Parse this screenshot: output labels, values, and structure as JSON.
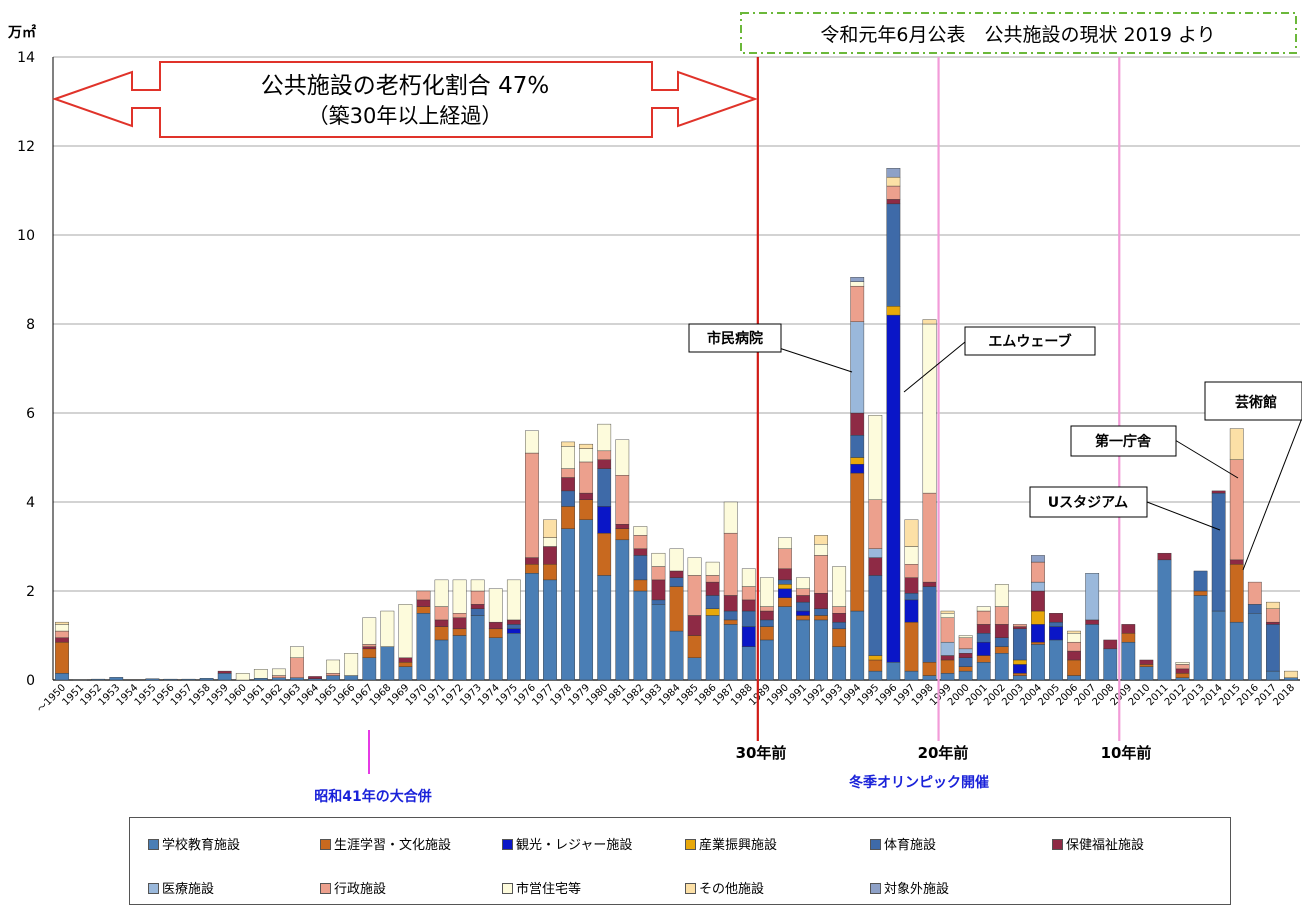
{
  "chart_data": {
    "type": "bar",
    "stacked": true,
    "ylabel": "万㎡",
    "ylim": [
      0,
      14
    ],
    "yticks": [
      0,
      2,
      4,
      6,
      8,
      10,
      12,
      14
    ],
    "grid": true,
    "source_note": "令和元年6月公表　公共施設の現状 2019 より",
    "categories": [
      "～1950",
      "1951",
      "1952",
      "1953",
      "1954",
      "1955",
      "1956",
      "1957",
      "1958",
      "1959",
      "1960",
      "1961",
      "1962",
      "1963",
      "1964",
      "1965",
      "1966",
      "1967",
      "1968",
      "1969",
      "1970",
      "1971",
      "1972",
      "1973",
      "1974",
      "1975",
      "1976",
      "1977",
      "1978",
      "1979",
      "1980",
      "1981",
      "1982",
      "1983",
      "1984",
      "1985",
      "1986",
      "1987",
      "1988",
      "1989",
      "1990",
      "1991",
      "1992",
      "1993",
      "1994",
      "1995",
      "1996",
      "1997",
      "1998",
      "1999",
      "2000",
      "2001",
      "2002",
      "2003",
      "2004",
      "2005",
      "2006",
      "2007",
      "2008",
      "2009",
      "2010",
      "2011",
      "2012",
      "2013",
      "2014",
      "2015",
      "2016",
      "2017",
      "2018"
    ],
    "series": [
      {
        "name": "学校教育施設",
        "color": "#4a7eb5",
        "values": [
          0.15,
          0.01,
          0.02,
          0.06,
          0,
          0.03,
          0.02,
          0.02,
          0.04,
          0.15,
          0,
          0.04,
          0.05,
          0.05,
          0.03,
          0.1,
          0.1,
          0.5,
          0.75,
          0.3,
          1.5,
          0.9,
          1.0,
          1.45,
          0.95,
          1.05,
          2.4,
          2.25,
          3.4,
          3.6,
          2.35,
          3.15,
          2.0,
          1.7,
          1.1,
          0.5,
          1.45,
          1.25,
          0.75,
          0.9,
          1.65,
          1.35,
          1.35,
          0.75,
          1.55,
          0.2,
          0.4,
          0.2,
          0.1,
          0.15,
          0.2,
          0.4,
          0.6,
          0.1,
          0.8,
          0.9,
          0.1,
          1.25,
          0.7,
          0.85,
          0.3,
          2.7,
          0.05,
          1.9,
          1.55,
          1.3,
          1.5,
          0.2,
          0.05
        ]
      },
      {
        "name": "生涯学習・文化施設",
        "color": "#c8691f",
        "values": [
          0.7,
          0,
          0,
          0,
          0,
          0,
          0,
          0,
          0,
          0,
          0,
          0,
          0,
          0,
          0,
          0,
          0,
          0.2,
          0,
          0.1,
          0.15,
          0.3,
          0.15,
          0,
          0.2,
          0,
          0.2,
          0.35,
          0.5,
          0.45,
          0.95,
          0.25,
          0.25,
          0,
          1.0,
          0.5,
          0,
          0.1,
          0,
          0.3,
          0.2,
          0.1,
          0.1,
          0.4,
          3.1,
          0.25,
          0,
          1.1,
          0.3,
          0.3,
          0.1,
          0.15,
          0.15,
          0.05,
          0.05,
          0,
          0.35,
          0,
          0,
          0.2,
          0.05,
          0,
          0.1,
          0.1,
          0,
          1.3,
          0,
          0,
          0
        ]
      },
      {
        "name": "観光・レジャー施設",
        "color": "#0a16c7",
        "values": [
          0,
          0,
          0,
          0,
          0,
          0,
          0,
          0,
          0,
          0,
          0,
          0,
          0,
          0,
          0,
          0,
          0,
          0,
          0,
          0,
          0,
          0,
          0,
          0,
          0,
          0.1,
          0,
          0,
          0,
          0,
          0.6,
          0,
          0,
          0,
          0,
          0,
          0,
          0,
          0.45,
          0,
          0.2,
          0.1,
          0,
          0,
          0.2,
          0,
          7.8,
          0.5,
          0,
          0,
          0,
          0.3,
          0,
          0.2,
          0.4,
          0.3,
          0,
          0,
          0,
          0,
          0,
          0,
          0,
          0,
          0,
          0,
          0,
          0,
          0
        ]
      },
      {
        "name": "産業振興施設",
        "color": "#e8a80a",
        "values": [
          0,
          0,
          0,
          0,
          0,
          0,
          0,
          0,
          0,
          0,
          0,
          0,
          0,
          0,
          0,
          0,
          0,
          0,
          0,
          0,
          0,
          0,
          0,
          0,
          0,
          0,
          0,
          0,
          0,
          0,
          0,
          0,
          0,
          0,
          0,
          0,
          0.15,
          0,
          0,
          0,
          0.1,
          0,
          0,
          0,
          0.15,
          0.1,
          0.2,
          0,
          0,
          0,
          0,
          0,
          0,
          0.1,
          0.3,
          0,
          0,
          0,
          0,
          0,
          0,
          0,
          0,
          0,
          0,
          0,
          0,
          0,
          0
        ]
      },
      {
        "name": "体育施設",
        "color": "#3e6aa8",
        "values": [
          0,
          0,
          0,
          0,
          0,
          0,
          0,
          0,
          0,
          0,
          0,
          0,
          0,
          0,
          0,
          0,
          0,
          0,
          0,
          0,
          0,
          0,
          0,
          0.15,
          0,
          0.1,
          0,
          0,
          0.35,
          0,
          0.85,
          0,
          0.55,
          0.1,
          0.2,
          0,
          0.3,
          0.2,
          0.35,
          0.15,
          0.1,
          0.2,
          0.15,
          0.15,
          0.5,
          1.8,
          2.3,
          0.15,
          1.7,
          0,
          0.2,
          0.2,
          0.2,
          0.7,
          0,
          0.1,
          0,
          0,
          0,
          0,
          0,
          0,
          0,
          0.45,
          2.65,
          0,
          0.2,
          1.05,
          0
        ]
      },
      {
        "name": "保健福祉施設",
        "color": "#8e2a45",
        "values": [
          0.1,
          0,
          0,
          0,
          0,
          0,
          0,
          0,
          0,
          0.05,
          0,
          0,
          0,
          0,
          0.05,
          0,
          0,
          0.05,
          0,
          0.1,
          0.15,
          0.15,
          0.25,
          0.1,
          0.15,
          0.1,
          0.15,
          0.4,
          0.3,
          0.15,
          0.2,
          0.1,
          0.15,
          0.45,
          0.15,
          0.45,
          0.3,
          0.35,
          0.25,
          0.2,
          0.25,
          0.15,
          0.35,
          0.2,
          0.5,
          0.4,
          0.1,
          0.35,
          0.1,
          0.1,
          0.1,
          0.2,
          0.3,
          0.05,
          0.45,
          0.2,
          0.2,
          0.1,
          0.2,
          0.2,
          0.1,
          0.15,
          0.1,
          0,
          0.05,
          0.1,
          0,
          0.05,
          0
        ]
      },
      {
        "name": "医療施設",
        "color": "#9ab8db",
        "values": [
          0,
          0,
          0,
          0,
          0,
          0,
          0,
          0,
          0,
          0,
          0,
          0,
          0,
          0,
          0,
          0,
          0,
          0,
          0,
          0,
          0,
          0,
          0,
          0,
          0,
          0,
          0,
          0,
          0,
          0,
          0,
          0,
          0,
          0,
          0,
          0,
          0,
          0,
          0,
          0,
          0,
          0,
          0,
          0,
          2.05,
          0.2,
          0,
          0,
          0,
          0.3,
          0.1,
          0,
          0,
          0,
          0.2,
          0,
          0,
          1.05,
          0,
          0,
          0,
          0,
          0,
          0,
          0,
          0,
          0,
          0,
          0
        ]
      },
      {
        "name": "行政施設",
        "color": "#eca08d",
        "values": [
          0.15,
          0,
          0,
          0,
          0,
          0,
          0,
          0,
          0,
          0,
          0,
          0,
          0.05,
          0.45,
          0,
          0.05,
          0,
          0.05,
          0,
          0,
          0.2,
          0.3,
          0.1,
          0.3,
          0,
          0,
          2.35,
          0,
          0.2,
          0.7,
          0.2,
          1.1,
          0.3,
          0.3,
          0,
          0.9,
          0.15,
          1.4,
          0.3,
          0.1,
          0.45,
          0.15,
          0.85,
          0.15,
          0.8,
          1.1,
          0.3,
          0.3,
          2.0,
          0.55,
          0.25,
          0.3,
          0.4,
          0.05,
          0.45,
          0,
          0.2,
          0,
          0,
          0,
          0,
          0,
          0.1,
          0,
          0,
          2.25,
          0.5,
          0.3,
          0
        ]
      },
      {
        "name": "市営住宅等",
        "color": "#fdfbdc",
        "values": [
          0.15,
          0,
          0,
          0,
          0,
          0,
          0,
          0,
          0,
          0,
          0.15,
          0.2,
          0.15,
          0.25,
          0,
          0.3,
          0.5,
          0.6,
          0.8,
          1.2,
          0,
          0.6,
          0.75,
          0.25,
          0.75,
          0.9,
          0.5,
          0.2,
          0.5,
          0.3,
          0.6,
          0.8,
          0.2,
          0.3,
          0.5,
          0.4,
          0.3,
          0.7,
          0.4,
          0.65,
          0.25,
          0.25,
          0.25,
          0.9,
          0.1,
          1.9,
          0,
          0.4,
          3.8,
          0.1,
          0.05,
          0.1,
          0.5,
          0,
          0,
          0,
          0.2,
          0,
          0,
          0,
          0,
          0,
          0.05,
          0,
          0,
          0,
          0,
          0,
          0
        ]
      },
      {
        "name": "その他施設",
        "color": "#fce0a6",
        "values": [
          0.05,
          0,
          0,
          0,
          0,
          0,
          0,
          0,
          0,
          0,
          0,
          0,
          0,
          0,
          0,
          0,
          0,
          0,
          0,
          0,
          0,
          0,
          0,
          0,
          0,
          0,
          0,
          0.4,
          0.1,
          0.1,
          0,
          0,
          0,
          0,
          0,
          0,
          0,
          0,
          0,
          0,
          0,
          0,
          0.2,
          0,
          0,
          0,
          0.2,
          0.6,
          0.1,
          0.05,
          0,
          0,
          0,
          0,
          0,
          0,
          0.05,
          0,
          0,
          0,
          0,
          0,
          0,
          0,
          0,
          0.7,
          0,
          0.15,
          0.15
        ]
      },
      {
        "name": "対象外施設",
        "color": "#8ea1c7",
        "values": [
          0,
          0,
          0,
          0,
          0,
          0,
          0,
          0,
          0,
          0,
          0,
          0,
          0,
          0,
          0,
          0,
          0,
          0,
          0,
          0,
          0,
          0,
          0,
          0,
          0,
          0,
          0,
          0,
          0,
          0,
          0,
          0,
          0,
          0,
          0,
          0,
          0,
          0,
          0,
          0,
          0,
          0,
          0,
          0,
          0.1,
          0,
          0.2,
          0,
          0,
          0,
          0,
          0,
          0,
          0,
          0.15,
          0,
          0,
          0,
          0,
          0,
          0,
          0,
          0,
          0,
          0,
          0,
          0,
          0,
          0
        ]
      }
    ],
    "annotations": {
      "aging_ratio_line1": "公共施設の老朽化割合  47%",
      "aging_ratio_line2": "（築30年以上経過）",
      "merger": "昭和41年の大合併",
      "olympics": "冬季オリンピック開催",
      "yrs30": "30年前",
      "yrs20": "20年前",
      "yrs10": "10年前",
      "callouts": [
        {
          "text": "市民病院",
          "year": "1994"
        },
        {
          "text": "エムウェーブ",
          "year": "1996"
        },
        {
          "text": "芸術館",
          "year": "2015"
        },
        {
          "text": "第一庁舎",
          "year": "2015"
        },
        {
          "text": "Uスタジアム",
          "year": "2014"
        }
      ]
    }
  }
}
